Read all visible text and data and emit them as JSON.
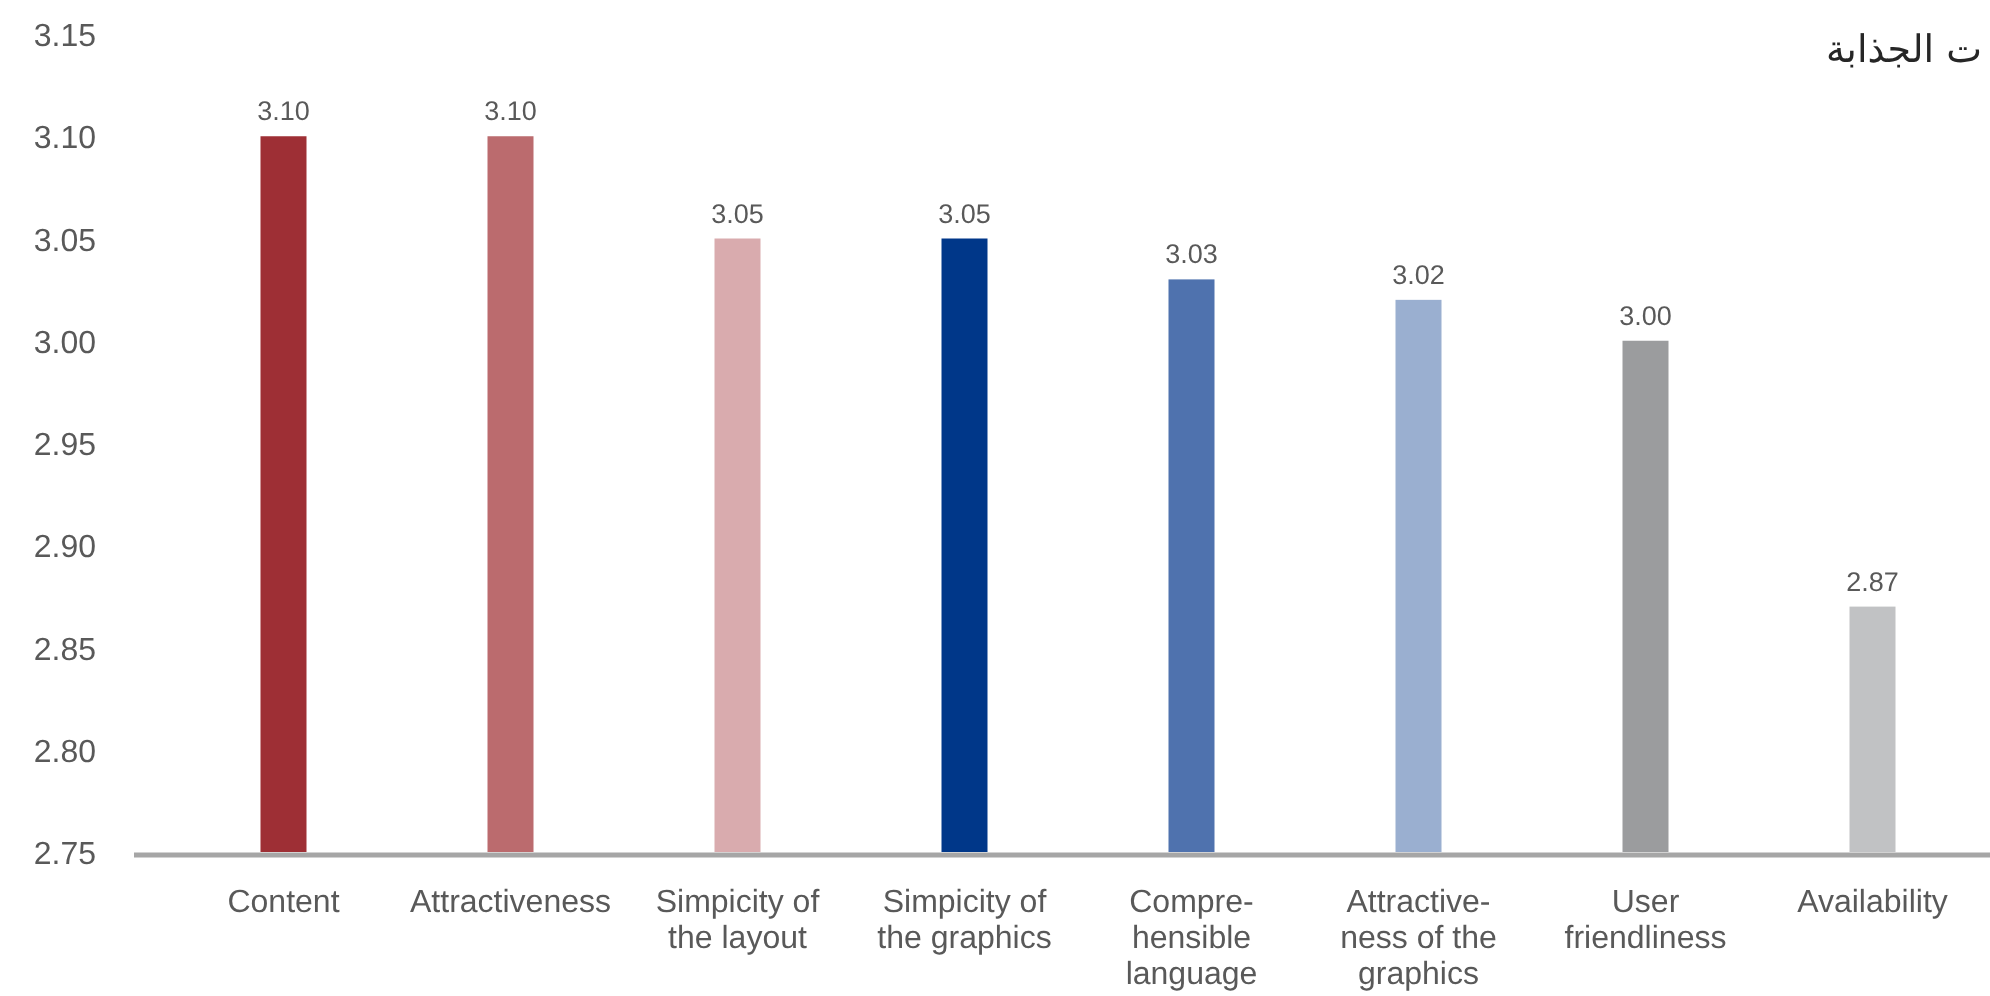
{
  "chart_data": {
    "type": "bar",
    "title": "ت الجذابة",
    "categories": [
      "Content",
      "Attractiveness",
      "Simpicity of\nthe layout",
      "Simpicity of\nthe graphics",
      "Compre-\nhensible\nlanguage",
      "Attractive-\nness of the\ngraphics",
      "User\nfriendliness",
      "Availability"
    ],
    "values": [
      3.1,
      3.1,
      3.05,
      3.05,
      3.03,
      3.02,
      3.0,
      2.87
    ],
    "colors": [
      "#9e2f35",
      "#bb6b6e",
      "#d9abae",
      "#003789",
      "#4f72ae",
      "#9aafd0",
      "#9b9c9e",
      "#c1c2c4"
    ],
    "value_labels": [
      "3.10",
      "3.10",
      "3.05",
      "3.05",
      "3.03",
      "3.02",
      "3.00",
      "2.87"
    ],
    "ylim": [
      2.75,
      3.15
    ],
    "yticks": [
      2.75,
      {
        "value": 2.8,
        "label": "2.80"
      },
      2.85,
      {
        "value": 2.9,
        "label": "2.90"
      },
      2.95,
      {
        "value": 3.0,
        "label": "3.00"
      },
      3.05,
      {
        "value": 3.1,
        "label": "3.10"
      },
      3.15
    ]
  }
}
